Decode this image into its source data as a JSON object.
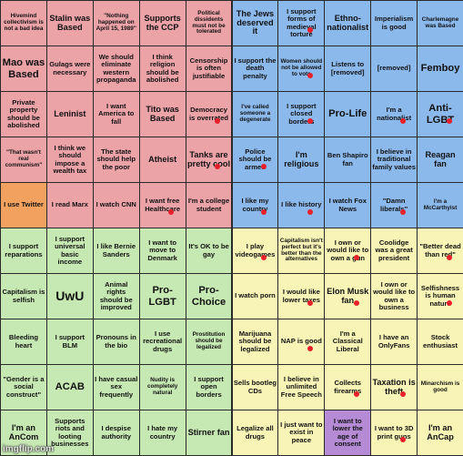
{
  "colors": {
    "red": "#eba3a8",
    "blue": "#8cb9ec",
    "green": "#c6e8b2",
    "yellow": "#f7f4b6",
    "orange": "#f2a25e",
    "purple": "#b58bd6",
    "marker": "#e8202a"
  },
  "rows": [
    [
      {
        "text": "Hivemind collectivism is not a bad idea",
        "color": "red",
        "fs": "xs",
        "mark": false
      },
      {
        "text": "Stalin was Based",
        "color": "red",
        "fs": "m",
        "mark": false
      },
      {
        "text": "\"Nothing happened on April 15, 1989\"",
        "color": "red",
        "fs": "xs",
        "mark": false
      },
      {
        "text": "Supports the CCP",
        "color": "red",
        "fs": "m",
        "mark": false
      },
      {
        "text": "Political dissidents must not be tolerated",
        "color": "red",
        "fs": "xs",
        "mark": false
      },
      {
        "text": "The Jews deserved it",
        "color": "blue",
        "fs": "m",
        "mark": false
      },
      {
        "text": "I support forms of medieval torture",
        "color": "blue",
        "fs": "s",
        "mark": true
      },
      {
        "text": "Ethno-nationalist",
        "color": "blue",
        "fs": "m",
        "mark": false
      },
      {
        "text": "Imperialism is good",
        "color": "blue",
        "fs": "s",
        "mark": false
      },
      {
        "text": "Charlemagne was Based",
        "color": "blue",
        "fs": "xs",
        "mark": false
      }
    ],
    [
      {
        "text": "Mao was Based",
        "color": "red",
        "fs": "l",
        "mark": false
      },
      {
        "text": "Gulags were necessary",
        "color": "red",
        "fs": "s",
        "mark": false
      },
      {
        "text": "We should eliminate western propaganda",
        "color": "red",
        "fs": "s",
        "mark": false
      },
      {
        "text": "I think religion should be abolished",
        "color": "red",
        "fs": "s",
        "mark": false
      },
      {
        "text": "Censorship is often justifiable",
        "color": "red",
        "fs": "s",
        "mark": false
      },
      {
        "text": "I support the death penalty",
        "color": "blue",
        "fs": "s",
        "mark": false
      },
      {
        "text": "Women should not be allowed to vote",
        "color": "blue",
        "fs": "xs",
        "mark": true
      },
      {
        "text": "Listens to [removed]",
        "color": "blue",
        "fs": "s",
        "mark": false
      },
      {
        "text": "[removed]",
        "color": "blue",
        "fs": "s",
        "mark": false
      },
      {
        "text": "Femboy",
        "color": "blue",
        "fs": "l",
        "mark": false
      }
    ],
    [
      {
        "text": "Private property should be abolished",
        "color": "red",
        "fs": "s",
        "mark": false
      },
      {
        "text": "Leninist",
        "color": "red",
        "fs": "m",
        "mark": false
      },
      {
        "text": "I want America to fall",
        "color": "red",
        "fs": "s",
        "mark": false
      },
      {
        "text": "Tito was Based",
        "color": "red",
        "fs": "m",
        "mark": false
      },
      {
        "text": "Democracy is overrated",
        "color": "red",
        "fs": "s",
        "mark": true
      },
      {
        "text": "I've called someone a degenerate",
        "color": "blue",
        "fs": "xs",
        "mark": false
      },
      {
        "text": "I support closed borders",
        "color": "blue",
        "fs": "s",
        "mark": true
      },
      {
        "text": "Pro-Life",
        "color": "blue",
        "fs": "l",
        "mark": false
      },
      {
        "text": "I'm a nationalist",
        "color": "blue",
        "fs": "s",
        "mark": true
      },
      {
        "text": "Anti-LGBT",
        "color": "blue",
        "fs": "l",
        "mark": true
      }
    ],
    [
      {
        "text": "\"That wasn't real communism\"",
        "color": "red",
        "fs": "xs",
        "mark": false
      },
      {
        "text": "I think we should impose a wealth tax",
        "color": "red",
        "fs": "s",
        "mark": false
      },
      {
        "text": "The state should help the poor",
        "color": "red",
        "fs": "s",
        "mark": false
      },
      {
        "text": "Atheist",
        "color": "red",
        "fs": "m",
        "mark": false
      },
      {
        "text": "Tanks are pretty cool",
        "color": "red",
        "fs": "m",
        "mark": true
      },
      {
        "text": "Police should be armed",
        "color": "blue",
        "fs": "s",
        "mark": true
      },
      {
        "text": "I'm religious",
        "color": "blue",
        "fs": "m",
        "mark": false
      },
      {
        "text": "Ben Shapiro fan",
        "color": "blue",
        "fs": "s",
        "mark": false
      },
      {
        "text": "I believe in traditional family values",
        "color": "blue",
        "fs": "s",
        "mark": false
      },
      {
        "text": "Reagan fan",
        "color": "blue",
        "fs": "m",
        "mark": false
      }
    ],
    [
      {
        "text": "I use Twitter",
        "color": "orange",
        "fs": "s",
        "mark": false
      },
      {
        "text": "I read Marx",
        "color": "red",
        "fs": "s",
        "mark": false
      },
      {
        "text": "I watch CNN",
        "color": "red",
        "fs": "s",
        "mark": false
      },
      {
        "text": "I want free Healthcare",
        "color": "red",
        "fs": "s",
        "mark": true
      },
      {
        "text": "I'm a college student",
        "color": "red",
        "fs": "s",
        "mark": false
      },
      {
        "text": "I like my country",
        "color": "blue",
        "fs": "s",
        "mark": true
      },
      {
        "text": "I like history",
        "color": "blue",
        "fs": "s",
        "mark": true
      },
      {
        "text": "I watch Fox News",
        "color": "blue",
        "fs": "s",
        "mark": false
      },
      {
        "text": "\"Damn liberals\"",
        "color": "blue",
        "fs": "s",
        "mark": true
      },
      {
        "text": "I'm a McCarthyist",
        "color": "blue",
        "fs": "xs",
        "mark": false
      }
    ],
    [
      {
        "text": "I support reparations",
        "color": "green",
        "fs": "s",
        "mark": false
      },
      {
        "text": "I support universal basic income",
        "color": "green",
        "fs": "s",
        "mark": false
      },
      {
        "text": "I like Bernie Sanders",
        "color": "green",
        "fs": "s",
        "mark": false
      },
      {
        "text": "I want to move to Denmark",
        "color": "green",
        "fs": "s",
        "mark": false
      },
      {
        "text": "It's OK to be gay",
        "color": "green",
        "fs": "s",
        "mark": false
      },
      {
        "text": "I play videogames",
        "color": "yellow",
        "fs": "s",
        "mark": true
      },
      {
        "text": "Capitalism isn't perfect but it's better than the alternatives",
        "color": "yellow",
        "fs": "xs",
        "mark": false
      },
      {
        "text": "I own or would like to own a gun",
        "color": "yellow",
        "fs": "s",
        "mark": true
      },
      {
        "text": "Coolidge was a great president",
        "color": "yellow",
        "fs": "s",
        "mark": false
      },
      {
        "text": "\"Better dead than red\"",
        "color": "yellow",
        "fs": "s",
        "mark": true
      }
    ],
    [
      {
        "text": "Capitalism is selfish",
        "color": "green",
        "fs": "s",
        "mark": false
      },
      {
        "text": "UwU",
        "color": "green",
        "fs": "xl",
        "mark": false
      },
      {
        "text": "Animal rights should be improved",
        "color": "green",
        "fs": "s",
        "mark": false
      },
      {
        "text": "Pro-LGBT",
        "color": "green",
        "fs": "l",
        "mark": false
      },
      {
        "text": "Pro-Choice",
        "color": "green",
        "fs": "l",
        "mark": false
      },
      {
        "text": "I watch porn",
        "color": "yellow",
        "fs": "s",
        "mark": false
      },
      {
        "text": "I would like lower taxes",
        "color": "yellow",
        "fs": "s",
        "mark": true
      },
      {
        "text": "Elon Musk fan",
        "color": "yellow",
        "fs": "m",
        "mark": true
      },
      {
        "text": "I own or would like to own a business",
        "color": "yellow",
        "fs": "s",
        "mark": false
      },
      {
        "text": "Selfishness is human nature",
        "color": "yellow",
        "fs": "s",
        "mark": true
      }
    ],
    [
      {
        "text": "Bleeding heart",
        "color": "green",
        "fs": "s",
        "mark": false
      },
      {
        "text": "I support BLM",
        "color": "green",
        "fs": "s",
        "mark": false
      },
      {
        "text": "Pronouns in the bio",
        "color": "green",
        "fs": "s",
        "mark": false
      },
      {
        "text": "I use recreational drugs",
        "color": "green",
        "fs": "s",
        "mark": false
      },
      {
        "text": "Prostitution should be legalized",
        "color": "green",
        "fs": "xs",
        "mark": false
      },
      {
        "text": "Marijuana should be legalized",
        "color": "yellow",
        "fs": "s",
        "mark": false
      },
      {
        "text": "NAP is good",
        "color": "yellow",
        "fs": "s",
        "mark": true
      },
      {
        "text": "I'm a Classical Liberal",
        "color": "yellow",
        "fs": "s",
        "mark": false
      },
      {
        "text": "I have an OnlyFans",
        "color": "yellow",
        "fs": "s",
        "mark": false
      },
      {
        "text": "Stock enthusiast",
        "color": "yellow",
        "fs": "s",
        "mark": false
      }
    ],
    [
      {
        "text": "\"Gender is a social construct\"",
        "color": "green",
        "fs": "s",
        "mark": false
      },
      {
        "text": "ACAB",
        "color": "green",
        "fs": "l",
        "mark": false
      },
      {
        "text": "I have casual sex frequently",
        "color": "green",
        "fs": "s",
        "mark": false
      },
      {
        "text": "Nudity is completely natural",
        "color": "green",
        "fs": "xs",
        "mark": false
      },
      {
        "text": "I support open borders",
        "color": "green",
        "fs": "s",
        "mark": false
      },
      {
        "text": "Sells bootleg CDs",
        "color": "yellow",
        "fs": "s",
        "mark": false
      },
      {
        "text": "I believe in unlimited Free Speech",
        "color": "yellow",
        "fs": "s",
        "mark": false
      },
      {
        "text": "Collects firearms",
        "color": "yellow",
        "fs": "s",
        "mark": true
      },
      {
        "text": "Taxation is theft",
        "color": "yellow",
        "fs": "m",
        "mark": true
      },
      {
        "text": "Minarchism is good",
        "color": "yellow",
        "fs": "xs",
        "mark": false
      }
    ],
    [
      {
        "text": "I'm an AnCom",
        "color": "green",
        "fs": "m",
        "mark": false
      },
      {
        "text": "Supports riots and looting businesses",
        "color": "green",
        "fs": "s",
        "mark": false
      },
      {
        "text": "I despise authority",
        "color": "green",
        "fs": "s",
        "mark": false
      },
      {
        "text": "I hate my country",
        "color": "green",
        "fs": "s",
        "mark": false
      },
      {
        "text": "Stirner fan",
        "color": "green",
        "fs": "m",
        "mark": false
      },
      {
        "text": "Legalize all drugs",
        "color": "yellow",
        "fs": "s",
        "mark": false
      },
      {
        "text": "I just want to exist in peace",
        "color": "yellow",
        "fs": "s",
        "mark": false
      },
      {
        "text": "I want to lower the age of consent",
        "color": "purple",
        "fs": "s",
        "mark": false
      },
      {
        "text": "I want to 3D print guns",
        "color": "yellow",
        "fs": "s",
        "mark": true
      },
      {
        "text": "I'm an AnCap",
        "color": "yellow",
        "fs": "m",
        "mark": false
      }
    ]
  ],
  "watermark": "imgflip.com"
}
